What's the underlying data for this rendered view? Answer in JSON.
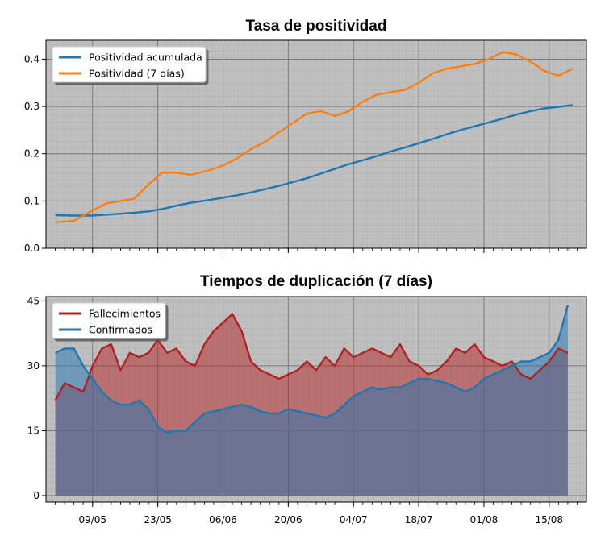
{
  "chart_data": [
    {
      "type": "line",
      "title": "Tasa de positividad",
      "xlabel": "",
      "ylabel": "",
      "ylim": [
        0,
        0.44
      ],
      "yticks": [
        "0.0",
        "0.1",
        "0.2",
        "0.3",
        "0.4"
      ],
      "grid": true,
      "legend_position": "top-left",
      "x_dates": [
        "2020-05-01",
        "2020-05-05",
        "2020-05-09",
        "2020-05-12",
        "2020-05-15",
        "2020-05-18",
        "2020-05-21",
        "2020-05-24",
        "2020-05-27",
        "2020-05-30",
        "2020-06-03",
        "2020-06-06",
        "2020-06-09",
        "2020-06-12",
        "2020-06-15",
        "2020-06-18",
        "2020-06-21",
        "2020-06-24",
        "2020-06-27",
        "2020-06-30",
        "2020-07-03",
        "2020-07-06",
        "2020-07-09",
        "2020-07-12",
        "2020-07-15",
        "2020-07-18",
        "2020-07-21",
        "2020-07-24",
        "2020-07-27",
        "2020-07-30",
        "2020-08-02",
        "2020-08-05",
        "2020-08-08",
        "2020-08-11",
        "2020-08-14",
        "2020-08-17",
        "2020-08-20"
      ],
      "series": [
        {
          "name": "Positividad acumulada",
          "color": "#1f77b4",
          "values": [
            0.07,
            0.069,
            0.069,
            0.071,
            0.073,
            0.075,
            0.078,
            0.083,
            0.09,
            0.096,
            0.102,
            0.107,
            0.112,
            0.118,
            0.125,
            0.132,
            0.14,
            0.148,
            0.158,
            0.168,
            0.178,
            0.186,
            0.195,
            0.205,
            0.213,
            0.222,
            0.231,
            0.241,
            0.25,
            0.258,
            0.266,
            0.274,
            0.283,
            0.29,
            0.296,
            0.299,
            0.303
          ]
        },
        {
          "name": "Positividad (7 días)",
          "color": "#ff7f0e",
          "values": [
            0.055,
            0.058,
            0.08,
            0.095,
            0.1,
            0.105,
            0.135,
            0.16,
            0.16,
            0.155,
            0.165,
            0.175,
            0.19,
            0.21,
            0.225,
            0.245,
            0.265,
            0.285,
            0.29,
            0.28,
            0.29,
            0.31,
            0.325,
            0.33,
            0.335,
            0.35,
            0.37,
            0.38,
            0.385,
            0.39,
            0.4,
            0.415,
            0.41,
            0.395,
            0.375,
            0.365,
            0.38
          ]
        }
      ]
    },
    {
      "type": "area",
      "title": "Tiempos de duplicación (7 días)",
      "xlabel": "",
      "ylabel": "",
      "ylim": [
        -1.5,
        46
      ],
      "yticks": [
        "0",
        "15",
        "30",
        "45"
      ],
      "xticks": [
        "09/05",
        "23/05",
        "06/06",
        "20/06",
        "04/07",
        "18/07",
        "01/08",
        "15/08"
      ],
      "grid": true,
      "legend_position": "top-left",
      "x_dates": [
        "2020-05-01",
        "2020-05-03",
        "2020-05-05",
        "2020-05-07",
        "2020-05-09",
        "2020-05-11",
        "2020-05-13",
        "2020-05-15",
        "2020-05-17",
        "2020-05-19",
        "2020-05-21",
        "2020-05-23",
        "2020-05-25",
        "2020-05-27",
        "2020-05-29",
        "2020-05-31",
        "2020-06-02",
        "2020-06-04",
        "2020-06-06",
        "2020-06-08",
        "2020-06-10",
        "2020-06-12",
        "2020-06-14",
        "2020-06-16",
        "2020-06-18",
        "2020-06-20",
        "2020-06-22",
        "2020-06-24",
        "2020-06-26",
        "2020-06-28",
        "2020-06-30",
        "2020-07-02",
        "2020-07-04",
        "2020-07-06",
        "2020-07-08",
        "2020-07-10",
        "2020-07-12",
        "2020-07-14",
        "2020-07-16",
        "2020-07-18",
        "2020-07-20",
        "2020-07-22",
        "2020-07-24",
        "2020-07-26",
        "2020-07-28",
        "2020-07-30",
        "2020-08-01",
        "2020-08-03",
        "2020-08-05",
        "2020-08-07",
        "2020-08-09",
        "2020-08-11",
        "2020-08-13",
        "2020-08-15",
        "2020-08-17",
        "2020-08-19"
      ],
      "series": [
        {
          "name": "Fallecimientos",
          "color": "#b22222",
          "values": [
            22,
            26,
            25,
            24,
            30,
            34,
            35,
            29,
            33,
            32,
            33,
            36,
            33,
            34,
            31,
            30,
            35,
            38,
            40,
            42,
            38,
            31,
            29,
            28,
            27,
            28,
            29,
            31,
            29,
            32,
            30,
            34,
            32,
            33,
            34,
            33,
            32,
            35,
            31,
            30,
            28,
            29,
            31,
            34,
            33,
            35,
            32,
            31,
            30,
            31,
            28,
            27,
            29,
            31,
            34,
            33
          ]
        },
        {
          "name": "Confirmados",
          "color": "#1f77b4",
          "values": [
            33,
            34,
            34,
            30,
            27,
            24,
            22,
            21,
            21,
            22,
            20,
            16,
            14.5,
            15,
            15,
            17,
            19,
            19.5,
            20,
            20.5,
            21,
            20.5,
            19.5,
            19,
            19,
            20,
            19.5,
            19,
            18.5,
            18,
            19,
            21,
            23,
            24,
            25,
            24.5,
            25,
            25,
            26,
            27,
            27,
            26.5,
            26,
            25,
            24,
            25,
            27,
            28,
            29,
            30,
            31,
            31,
            32,
            33,
            36,
            44
          ]
        }
      ]
    }
  ]
}
